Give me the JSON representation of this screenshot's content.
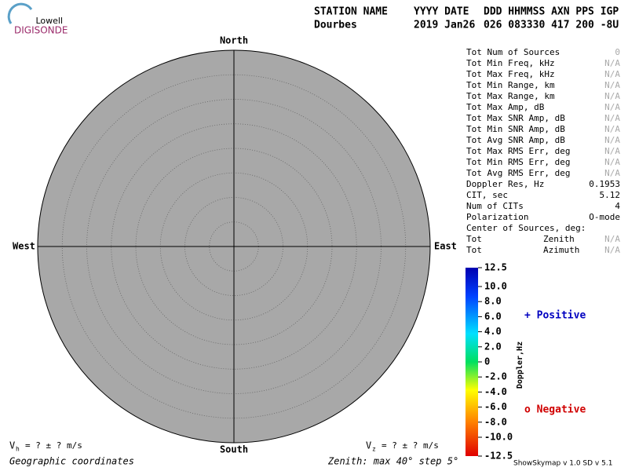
{
  "logo": {
    "top": "Lowell",
    "bottom": "DIGISONDE"
  },
  "header": {
    "row1": [
      "STATION NAME",
      "YYYY DATE",
      "DDD HHMMSS AXN PPS IGP"
    ],
    "row2": [
      "Dourbes",
      "2019 Jan26",
      "026 083330 417 200 -8U"
    ]
  },
  "plot": {
    "north": "North",
    "south": "South",
    "west": "West",
    "east": "East"
  },
  "stats": [
    [
      "Tot Num of Sources",
      "0"
    ],
    [
      "Tot Min Freq, kHz",
      "N/A"
    ],
    [
      "Tot Max Freq, kHz",
      "N/A"
    ],
    [
      "Tot Min Range, km",
      "N/A"
    ],
    [
      "Tot Max Range, km",
      "N/A"
    ],
    [
      "Tot Max Amp, dB",
      "N/A"
    ],
    [
      "Tot Max SNR Amp, dB",
      "N/A"
    ],
    [
      "Tot Min SNR Amp, dB",
      "N/A"
    ],
    [
      "Tot Avg SNR Amp, dB",
      "N/A"
    ],
    [
      "Tot Max RMS Err, deg",
      "N/A"
    ],
    [
      "Tot Min RMS Err, deg",
      "N/A"
    ],
    [
      "Tot Avg RMS Err, deg",
      "N/A"
    ],
    [
      "Doppler Res, Hz",
      "0.1953"
    ],
    [
      "CIT, sec",
      "5.12"
    ],
    [
      "Num of CITs",
      "4"
    ],
    [
      "Polarization",
      "O-mode"
    ],
    [
      "Center of Sources, deg:"
    ],
    [
      "Tot",
      "Zenith",
      "N/A"
    ],
    [
      "Tot",
      "Azimuth",
      "N/A"
    ]
  ],
  "colorbar": {
    "title": "Doppler,Hz",
    "ticks": [
      "12.5",
      "10.0",
      "8.0",
      "6.0",
      "4.0",
      "2.0",
      "0",
      "-2.0",
      "-4.0",
      "-6.0",
      "-8.0",
      "-10.0",
      "-12.5"
    ]
  },
  "legend": {
    "positive": "+ Positive",
    "negative": "o Negative"
  },
  "footer": {
    "vh_sym": "V",
    "vh_sub": "h",
    "vh": "=  ? ±  ? m/s",
    "vz_sym": "V",
    "vz_sub": "z",
    "vz": "=  ? ±  ? m/s",
    "coords": "Geographic coordinates",
    "zenith": "Zenith: max 40°  step 5°",
    "version": "ShowSkymap v 1.0  SD v 5.1"
  }
}
